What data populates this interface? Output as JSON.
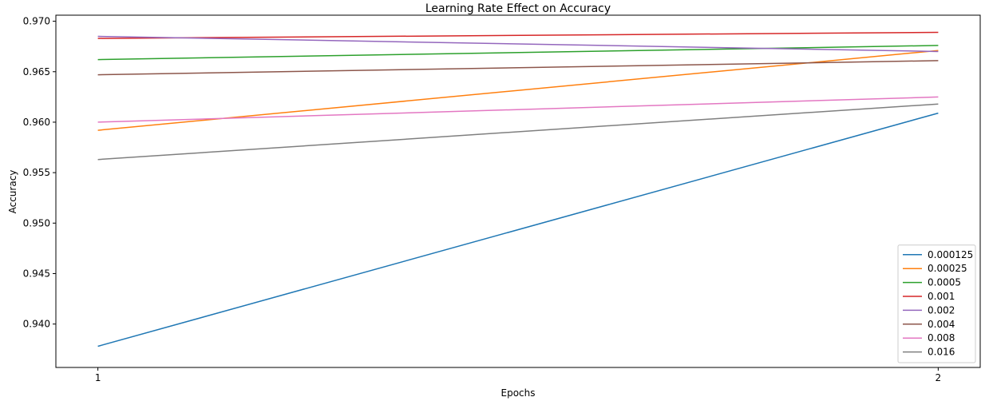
{
  "chart_data": {
    "type": "line",
    "title": "Learning Rate Effect on Accuracy",
    "xlabel": "Epochs",
    "ylabel": "Accuracy",
    "x": [
      1,
      2
    ],
    "x_tick_labels": [
      "1",
      "2"
    ],
    "xlim": [
      0.95,
      2.05
    ],
    "ylim": [
      0.9357,
      0.9706
    ],
    "y_ticks": [
      0.94,
      0.945,
      0.95,
      0.955,
      0.96,
      0.965,
      0.97
    ],
    "y_tick_labels": [
      "0.940",
      "0.945",
      "0.950",
      "0.955",
      "0.960",
      "0.965",
      "0.970"
    ],
    "grid": false,
    "legend_position": "bottom-right",
    "series": [
      {
        "name": "0.000125",
        "color": "#1f77b4",
        "values": [
          0.9378,
          0.9609
        ]
      },
      {
        "name": "0.00025",
        "color": "#ff7f0e",
        "values": [
          0.9592,
          0.9671
        ]
      },
      {
        "name": "0.0005",
        "color": "#2ca02c",
        "values": [
          0.9662,
          0.9676
        ]
      },
      {
        "name": "0.001",
        "color": "#d62728",
        "values": [
          0.9683,
          0.9689
        ]
      },
      {
        "name": "0.002",
        "color": "#9467bd",
        "values": [
          0.9685,
          0.967
        ]
      },
      {
        "name": "0.004",
        "color": "#8c564b",
        "values": [
          0.9647,
          0.9661
        ]
      },
      {
        "name": "0.008",
        "color": "#e377c2",
        "values": [
          0.96,
          0.9625
        ]
      },
      {
        "name": "0.016",
        "color": "#7f7f7f",
        "values": [
          0.9563,
          0.9618
        ]
      }
    ]
  }
}
